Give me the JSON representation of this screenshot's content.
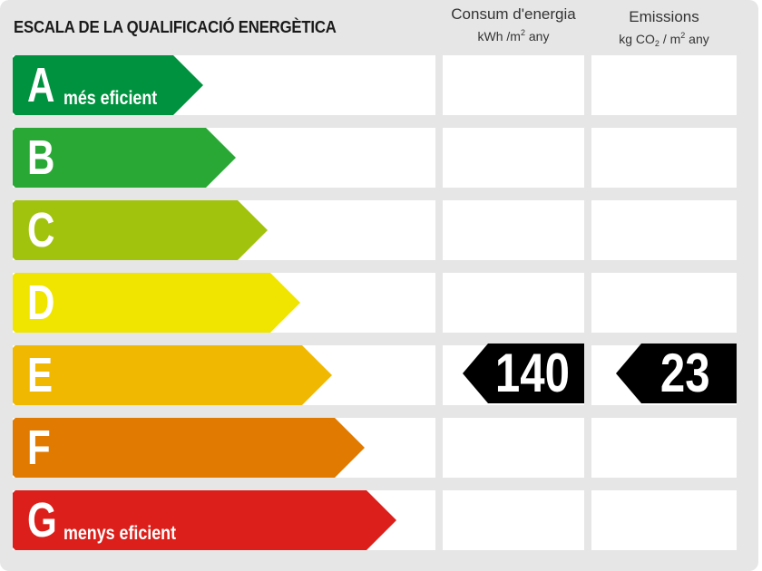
{
  "title": "ESCALA DE LA QUALIFICACIÓ ENERGÈTICA",
  "columns": {
    "consum": {
      "label": "Consum d'energia",
      "unit_pre": "kWh /m",
      "unit_sup": "2",
      "unit_post": " any"
    },
    "emissions": {
      "label": "Emissions",
      "unit_pre": "kg CO",
      "unit_sub": "2",
      "unit_mid": " / m",
      "unit_sup": "2",
      "unit_post": " any"
    }
  },
  "grades": [
    {
      "letter": "A",
      "note": "més eficient",
      "color": "#00923f"
    },
    {
      "letter": "B",
      "note": "",
      "color": "#2aa836"
    },
    {
      "letter": "C",
      "note": "",
      "color": "#a2c30d"
    },
    {
      "letter": "D",
      "note": "",
      "color": "#f0e500"
    },
    {
      "letter": "E",
      "note": "",
      "color": "#f0b800"
    },
    {
      "letter": "F",
      "note": "",
      "color": "#e07a00"
    },
    {
      "letter": "G",
      "note": "menys eficient",
      "color": "#dc1f1a"
    }
  ],
  "rating": {
    "grade": "E",
    "consum_value": "140",
    "emissions_value": "23"
  }
}
